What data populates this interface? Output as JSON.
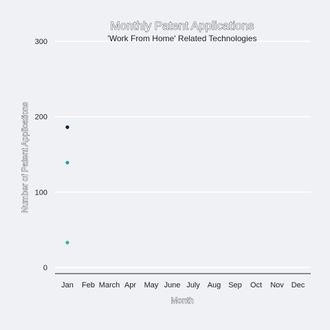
{
  "chart_data": {
    "type": "scatter",
    "title": "Monthly Patent Applications",
    "subtitle": "'Work From Home' Related Technologies",
    "xlabel": "Month",
    "ylabel": "Number of Patent Applications",
    "categories": [
      "Jan",
      "Feb",
      "March",
      "Apr",
      "May",
      "June",
      "July",
      "Aug",
      "Sep",
      "Oct",
      "Nov",
      "Dec"
    ],
    "ylim": [
      0,
      300
    ],
    "yticks": [
      0,
      100,
      200,
      300
    ],
    "grid": true,
    "series": [
      {
        "color": "#0b1f3a",
        "points": [
          {
            "x": "Jan",
            "y": 186
          }
        ]
      },
      {
        "color": "#2a9d9f",
        "points": [
          {
            "x": "Jan",
            "y": 139
          }
        ]
      },
      {
        "color": "#3bb39a",
        "points": [
          {
            "x": "Jan",
            "y": 33
          }
        ]
      }
    ]
  }
}
